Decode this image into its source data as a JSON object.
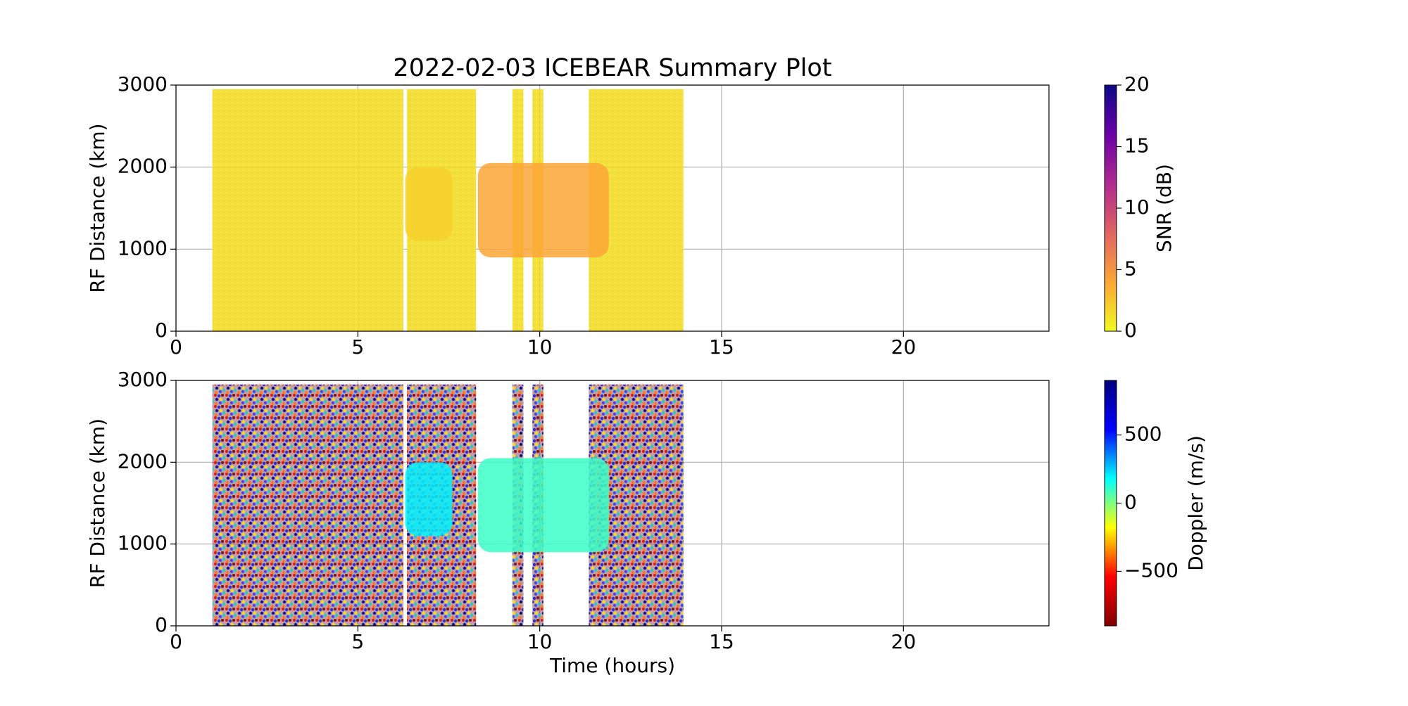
{
  "chart_data": [
    {
      "type": "scatter",
      "title": "2022-02-03 ICEBEAR Summary Plot",
      "ylabel": "RF Distance (km)",
      "xlim": [
        0,
        24
      ],
      "xticks": [
        0,
        5,
        10,
        15,
        20
      ],
      "ylim": [
        0,
        3000
      ],
      "yticks": [
        0,
        1000,
        2000,
        3000
      ],
      "grid": true,
      "colorbar": {
        "label": "SNR (dB)",
        "lim": [
          0,
          20
        ],
        "ticks": [
          0,
          5,
          10,
          15,
          20
        ],
        "colormap": [
          "#f0f921",
          "#fca636",
          "#e16462",
          "#b12a90",
          "#6a00a8",
          "#0d0887"
        ]
      },
      "noise": [
        {
          "x": [
            1,
            6.25
          ],
          "y": [
            0,
            2950
          ]
        },
        {
          "x": [
            6.35,
            8.25
          ],
          "y": [
            0,
            2950
          ]
        },
        {
          "x": [
            9.25,
            9.55
          ],
          "y": [
            0,
            2950
          ]
        },
        {
          "x": [
            9.8,
            10.1
          ],
          "y": [
            0,
            2950
          ]
        },
        {
          "x": [
            11.35,
            13.95
          ],
          "y": [
            0,
            2950
          ]
        }
      ],
      "echoes": [
        {
          "x": [
            6.3,
            7.6
          ],
          "y": [
            1100,
            2000
          ],
          "value": 2
        },
        {
          "x": [
            8.3,
            11.9
          ],
          "y": [
            900,
            2050
          ],
          "value": 4
        }
      ]
    },
    {
      "type": "scatter",
      "ylabel": "RF Distance (km)",
      "xlabel": "Time (hours)",
      "xlim": [
        0,
        24
      ],
      "xticks": [
        0,
        5,
        10,
        15,
        20
      ],
      "ylim": [
        0,
        3000
      ],
      "yticks": [
        0,
        1000,
        2000,
        3000
      ],
      "grid": true,
      "colorbar": {
        "label": "Doppler (m/s)",
        "lim": [
          -900,
          900
        ],
        "ticks": [
          {
            "value": -500,
            "label": "−500"
          },
          0,
          500
        ],
        "colormap": [
          "#7f0000",
          "#ff0000",
          "#ffff00",
          "#00ffff",
          "#0000ff",
          "#00007f"
        ]
      },
      "noise": [
        {
          "x": [
            1,
            6.25
          ],
          "y": [
            0,
            2950
          ]
        },
        {
          "x": [
            6.35,
            8.25
          ],
          "y": [
            0,
            2950
          ]
        },
        {
          "x": [
            9.25,
            9.55
          ],
          "y": [
            0,
            2950
          ]
        },
        {
          "x": [
            9.8,
            10.1
          ],
          "y": [
            0,
            2950
          ]
        },
        {
          "x": [
            11.35,
            13.95
          ],
          "y": [
            0,
            2950
          ]
        }
      ],
      "echoes": [
        {
          "x": [
            6.3,
            7.6
          ],
          "y": [
            1100,
            2000
          ],
          "value": 200
        },
        {
          "x": [
            8.3,
            11.9
          ],
          "y": [
            900,
            2050
          ],
          "value": 100
        }
      ]
    }
  ]
}
